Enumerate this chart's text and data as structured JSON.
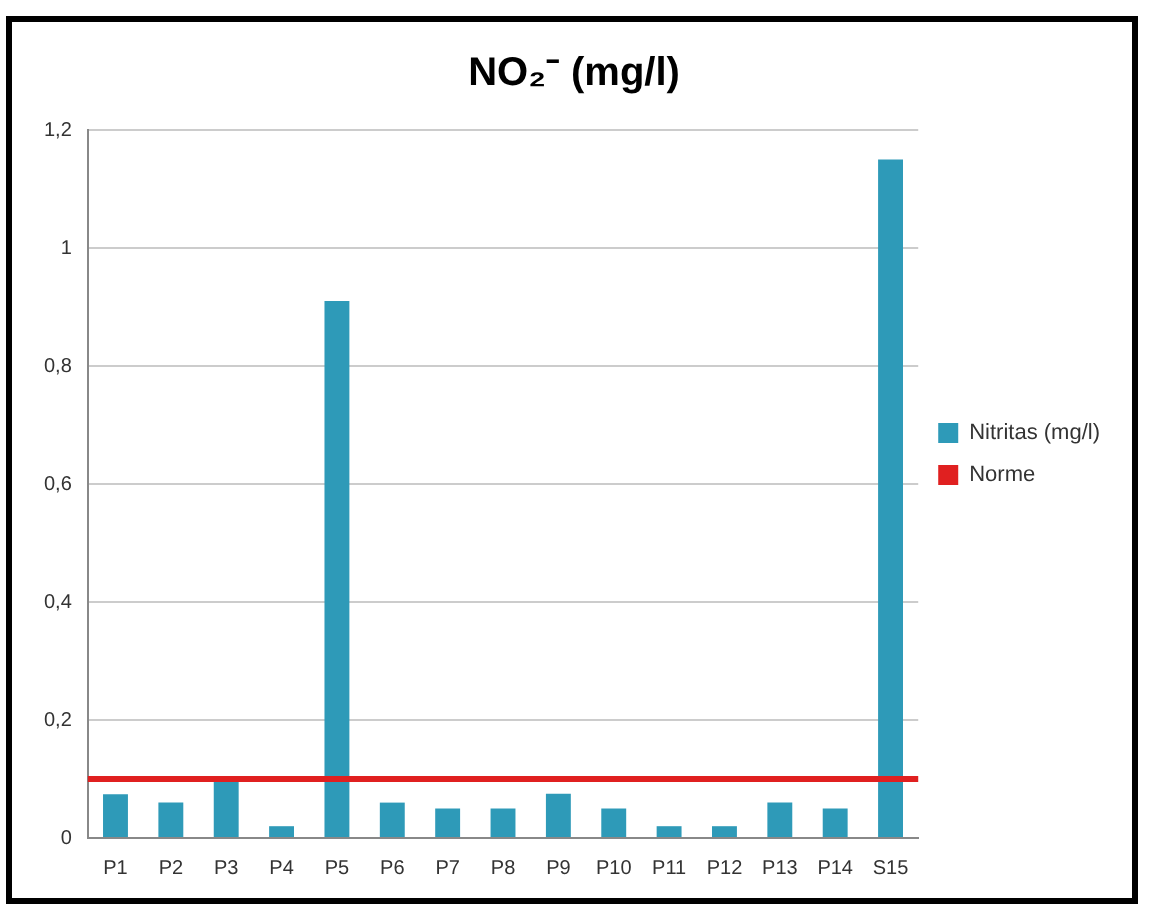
{
  "chart_data": {
    "type": "bar",
    "title": "NO₂⁻ (mg/l)",
    "categories": [
      "P1",
      "P2",
      "P3",
      "P4",
      "P5",
      "P6",
      "P7",
      "P8",
      "P9",
      "P10",
      "P11",
      "P12",
      "P13",
      "P14",
      "S15"
    ],
    "series": [
      {
        "name": "Nitritas (mg/l)",
        "color": "#2e9ab8",
        "values": [
          0.074,
          0.06,
          0.1,
          0.02,
          0.91,
          0.06,
          0.05,
          0.05,
          0.075,
          0.05,
          0.02,
          0.02,
          0.06,
          0.05,
          1.15
        ]
      }
    ],
    "ylim": [
      0,
      1.2
    ],
    "yticks": [
      0,
      {
        "value": 0.2,
        "label": "0,2"
      },
      {
        "value": 0.4,
        "label": "0,4"
      },
      {
        "value": 0.6,
        "label": "0,6"
      },
      {
        "value": 0.8,
        "label": "0,8"
      },
      1,
      {
        "value": 1.2,
        "label": "1,2"
      }
    ],
    "ref_lines": [
      {
        "axis": "y",
        "value": 0.1,
        "label": "Norme",
        "color": "#e02020"
      }
    ],
    "grid": "y",
    "legend": "right"
  }
}
